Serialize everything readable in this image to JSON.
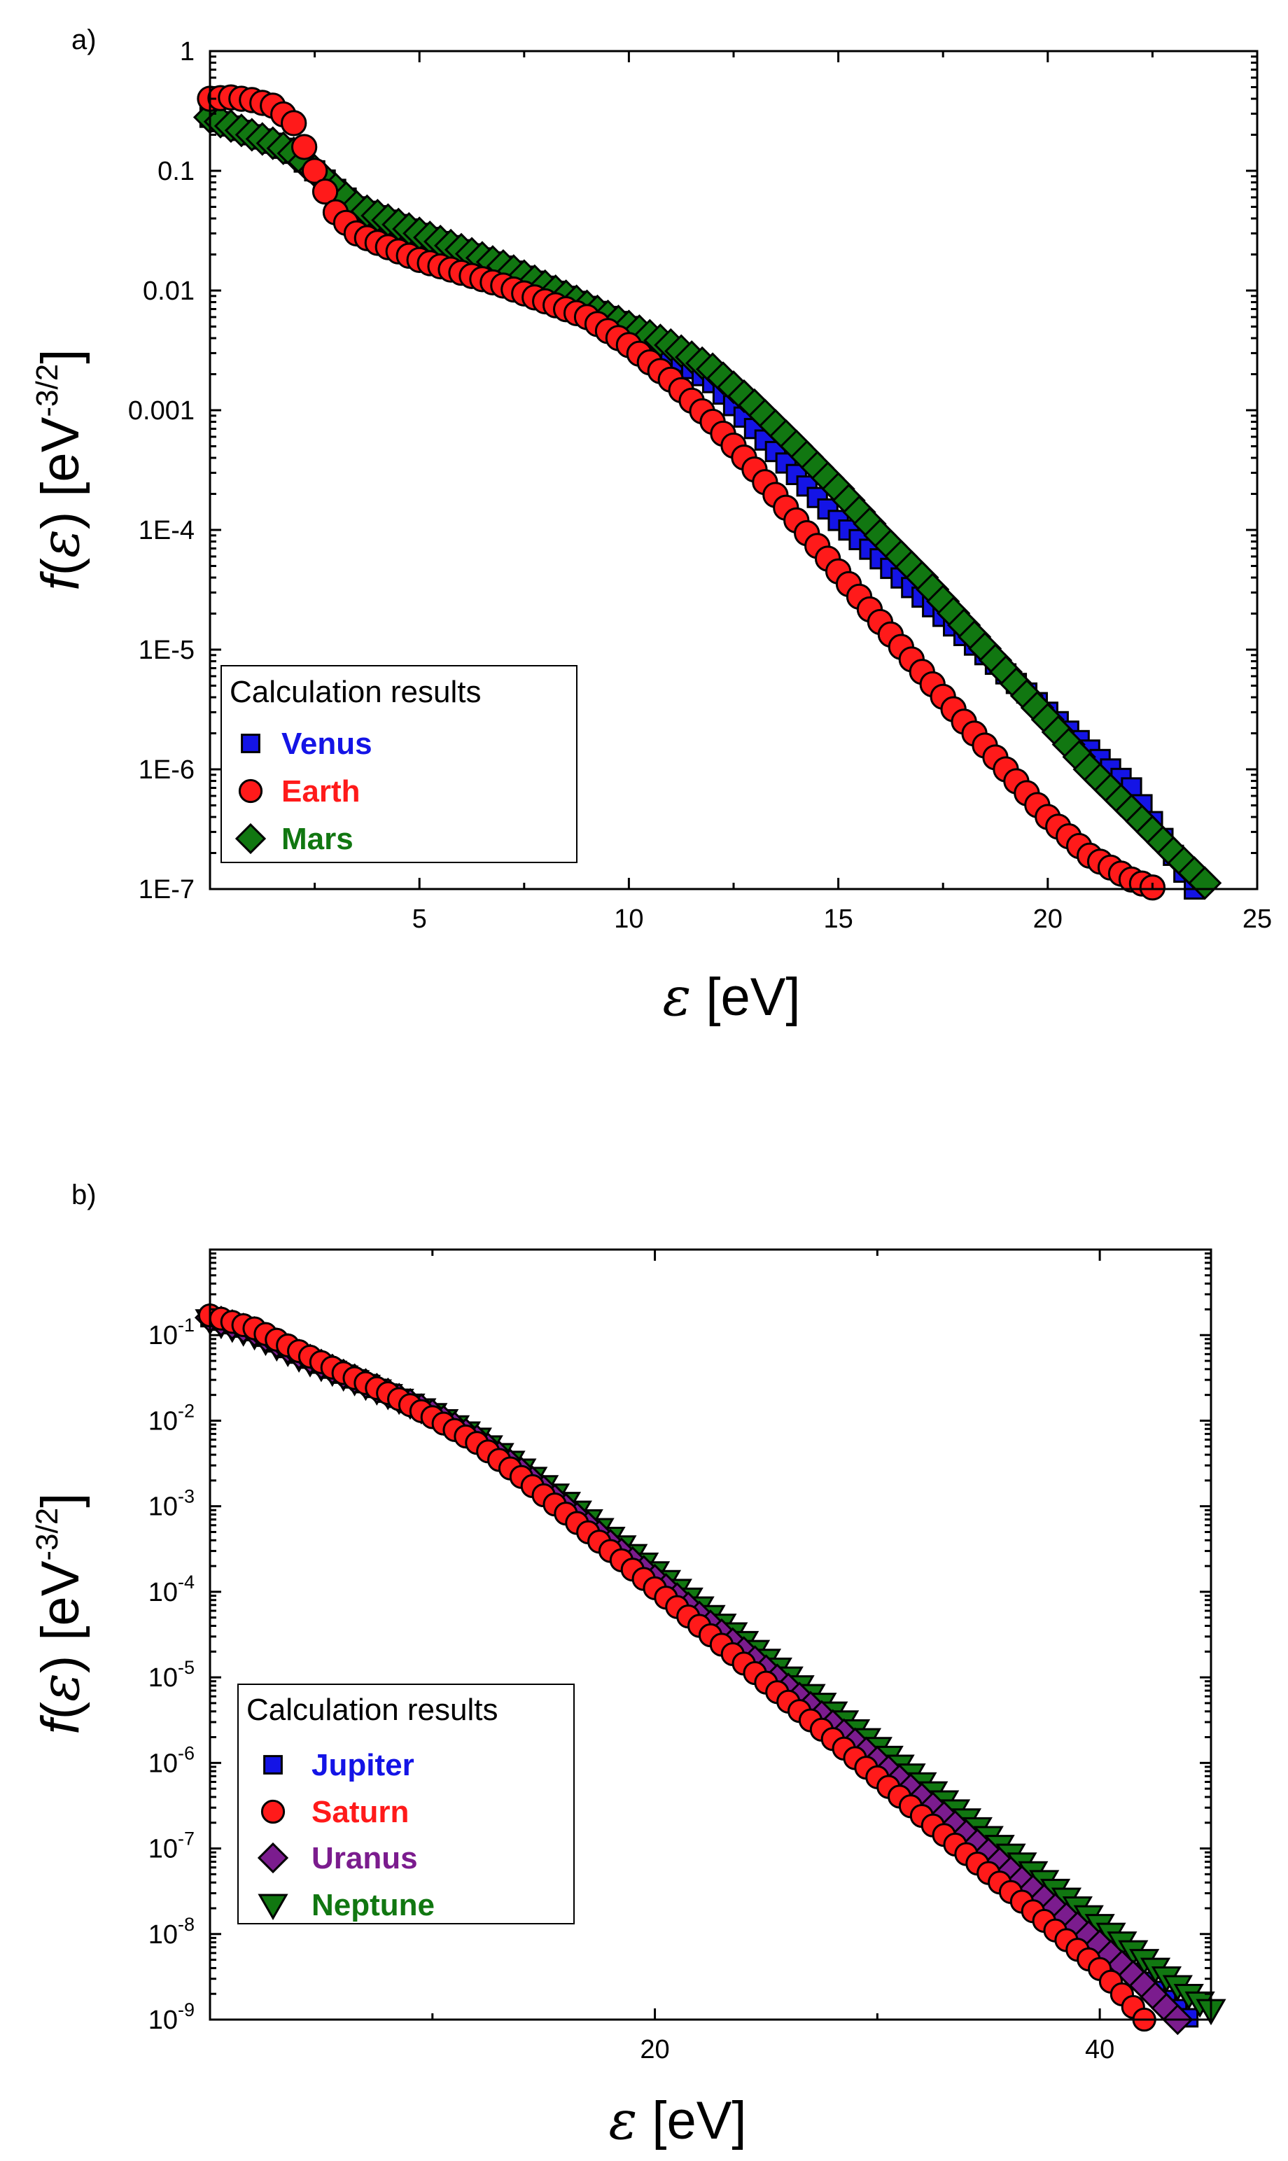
{
  "chart_data": [
    {
      "panel_label": "a)",
      "type": "scatter",
      "yscale": "log",
      "xlim": [
        0,
        25
      ],
      "ylim": [
        1e-07,
        1
      ],
      "xticks": [
        5,
        10,
        15,
        20,
        25
      ],
      "xlabel_symbol": "ε",
      "xlabel_unit": "[eV]",
      "ylabel_func": "f(",
      "ylabel_symbol": "ε",
      "ylabel_close": ")",
      "ylabel_unit": "[eV",
      "ylabel_exp": "-3/2",
      "ylabel_end": "]",
      "ytick_labels": [
        {
          "value": 1,
          "label": "1"
        },
        {
          "value": 0.1,
          "label": "0.1"
        },
        {
          "value": 0.01,
          "label": "0.01"
        },
        {
          "value": 0.001,
          "label": "0.001"
        },
        {
          "value": 0.0001,
          "label": "1E-4"
        },
        {
          "value": 1e-05,
          "label": "1E-5"
        },
        {
          "value": 1e-06,
          "label": "1E-6"
        },
        {
          "value": 1e-07,
          "label": "1E-7"
        }
      ],
      "legend_title": "Calculation results",
      "legend_position": "bottom-left",
      "series": [
        {
          "name": "Venus",
          "color": "#1414e6",
          "marker": "square",
          "x_step": 0.25,
          "x": [
            0,
            1,
            1.5,
            2,
            2.5,
            3,
            3.5,
            5,
            7,
            10,
            12,
            15,
            20,
            22,
            23.5
          ],
          "y": [
            0.28,
            0.2,
            0.17,
            0.14,
            0.1,
            0.07,
            0.05,
            0.03,
            0.016,
            0.005,
            0.0017,
            0.00012,
            3e-06,
            7e-07,
            1e-07
          ]
        },
        {
          "name": "Earth",
          "color": "#ff1a1a",
          "marker": "circle",
          "x_step": 0.25,
          "x": [
            0,
            0.5,
            1,
            1.5,
            2,
            2.5,
            3,
            3.5,
            4,
            5,
            7,
            9,
            10,
            11,
            12,
            13,
            14,
            15,
            16,
            18,
            20,
            21,
            22,
            22.6
          ],
          "y": [
            0.4,
            0.41,
            0.39,
            0.35,
            0.25,
            0.1,
            0.045,
            0.03,
            0.025,
            0.018,
            0.011,
            0.006,
            0.0035,
            0.0018,
            0.0008,
            0.00032,
            0.00012,
            4.5e-05,
            1.7e-05,
            2.5e-06,
            4e-07,
            1.9e-07,
            1.2e-07,
            1e-07
          ],
          "note": "legend"
        },
        {
          "name": "Mars",
          "color": "#117711",
          "marker": "diamond",
          "x_step": 0.25,
          "x": [
            0,
            1,
            1.5,
            2,
            2.5,
            3,
            3.5,
            5,
            7,
            10,
            11,
            12,
            13,
            14,
            15,
            16,
            17,
            18,
            19,
            20,
            21,
            22,
            23,
            23.9
          ],
          "y": [
            0.28,
            0.2,
            0.17,
            0.14,
            0.1,
            0.07,
            0.05,
            0.03,
            0.016,
            0.005,
            0.0035,
            0.0022,
            0.0011,
            0.0005,
            0.00022,
            9e-05,
            4e-05,
            1.6e-05,
            6.5e-06,
            2.6e-06,
            1e-06,
            4.5e-07,
            2e-07,
            1e-07
          ]
        }
      ]
    },
    {
      "panel_label": "b)",
      "type": "scatter",
      "yscale": "log",
      "xlim": [
        0,
        45
      ],
      "ylim": [
        1e-09,
        1
      ],
      "xticks": [
        20,
        40
      ],
      "xminor": [
        10,
        30
      ],
      "xlabel_symbol": "ε",
      "xlabel_unit": "[eV]",
      "ylabel_func": "f(",
      "ylabel_symbol": "ε",
      "ylabel_close": ")",
      "ylabel_unit": "[eV",
      "ylabel_exp": "-3/2",
      "ylabel_end": "]",
      "ytick_labels": [
        {
          "value": 0.1,
          "base": "10",
          "exp": "-1"
        },
        {
          "value": 0.01,
          "base": "10",
          "exp": "-2"
        },
        {
          "value": 0.001,
          "base": "10",
          "exp": "-3"
        },
        {
          "value": 0.0001,
          "base": "10",
          "exp": "-4"
        },
        {
          "value": 1e-05,
          "base": "10",
          "exp": "-5"
        },
        {
          "value": 1e-06,
          "base": "10",
          "exp": "-6"
        },
        {
          "value": 1e-07,
          "base": "10",
          "exp": "-7"
        },
        {
          "value": 1e-08,
          "base": "10",
          "exp": "-8"
        },
        {
          "value": 1e-09,
          "base": "10",
          "exp": "-9"
        }
      ],
      "legend_title": "Calculation results",
      "legend_position": "bottom-left",
      "series": [
        {
          "name": "Jupiter",
          "color": "#1414e6",
          "marker": "square",
          "x_step": 0.5,
          "x": [
            0,
            2,
            4,
            6,
            8,
            10,
            12,
            14,
            16,
            18,
            20,
            22,
            24,
            26,
            28,
            30,
            32,
            34,
            36,
            38,
            40,
            42,
            44
          ],
          "y": [
            0.16,
            0.11,
            0.06,
            0.035,
            0.021,
            0.012,
            0.006,
            0.0025,
            0.00095,
            0.00036,
            0.00014,
            5.2e-05,
            2e-05,
            7.5e-06,
            2.8e-06,
            1.05e-06,
            3.9e-07,
            1.45e-07,
            5.4e-08,
            2e-08,
            7.5e-09,
            2.8e-09,
            1.05e-09
          ]
        },
        {
          "name": "Saturn",
          "color": "#ff1a1a",
          "marker": "circle",
          "x_step": 0.5,
          "x": [
            0,
            2,
            4,
            6,
            8,
            10,
            12,
            14,
            16,
            18,
            20,
            22,
            24,
            26,
            28,
            30,
            32,
            34,
            36,
            38,
            40,
            42
          ],
          "y": [
            0.17,
            0.12,
            0.065,
            0.036,
            0.021,
            0.011,
            0.0055,
            0.0022,
            0.00082,
            0.0003,
            0.00011,
            4e-05,
            1.45e-05,
            5.2e-06,
            1.9e-06,
            6.8e-07,
            2.4e-07,
            8.6e-08,
            3.1e-08,
            1.1e-08,
            3.9e-09,
            1e-09
          ]
        },
        {
          "name": "Uranus",
          "color": "#7b1c8e",
          "marker": "diamond",
          "x_step": 0.5,
          "x": [
            0,
            2,
            4,
            6,
            8,
            10,
            12,
            14,
            16,
            18,
            20,
            22,
            24,
            26,
            28,
            30,
            32,
            34,
            36,
            38,
            40,
            42,
            43.5
          ],
          "y": [
            0.16,
            0.11,
            0.06,
            0.035,
            0.021,
            0.012,
            0.006,
            0.0025,
            0.00095,
            0.00036,
            0.00014,
            5.2e-05,
            2e-05,
            7.5e-06,
            2.8e-06,
            1.05e-06,
            3.9e-07,
            1.45e-07,
            5.4e-08,
            2e-08,
            7.5e-09,
            2.5e-09,
            1e-09
          ]
        },
        {
          "name": "Neptune",
          "color": "#117711",
          "marker": "triangle-down",
          "x_step": 0.5,
          "x": [
            0,
            2,
            4,
            6,
            8,
            10,
            12,
            14,
            16,
            18,
            20,
            22,
            24,
            26,
            28,
            30,
            32,
            34,
            36,
            38,
            40,
            42,
            44,
            45
          ],
          "y": [
            0.15,
            0.1,
            0.055,
            0.033,
            0.02,
            0.012,
            0.0062,
            0.0027,
            0.0011,
            0.00043,
            0.00017,
            6.6e-05,
            2.6e-05,
            1e-05,
            3.9e-06,
            1.5e-06,
            5.8e-07,
            2.2e-07,
            8.5e-08,
            3.3e-08,
            1.28e-08,
            5e-09,
            1.95e-09,
            1.3e-09
          ]
        }
      ]
    }
  ]
}
